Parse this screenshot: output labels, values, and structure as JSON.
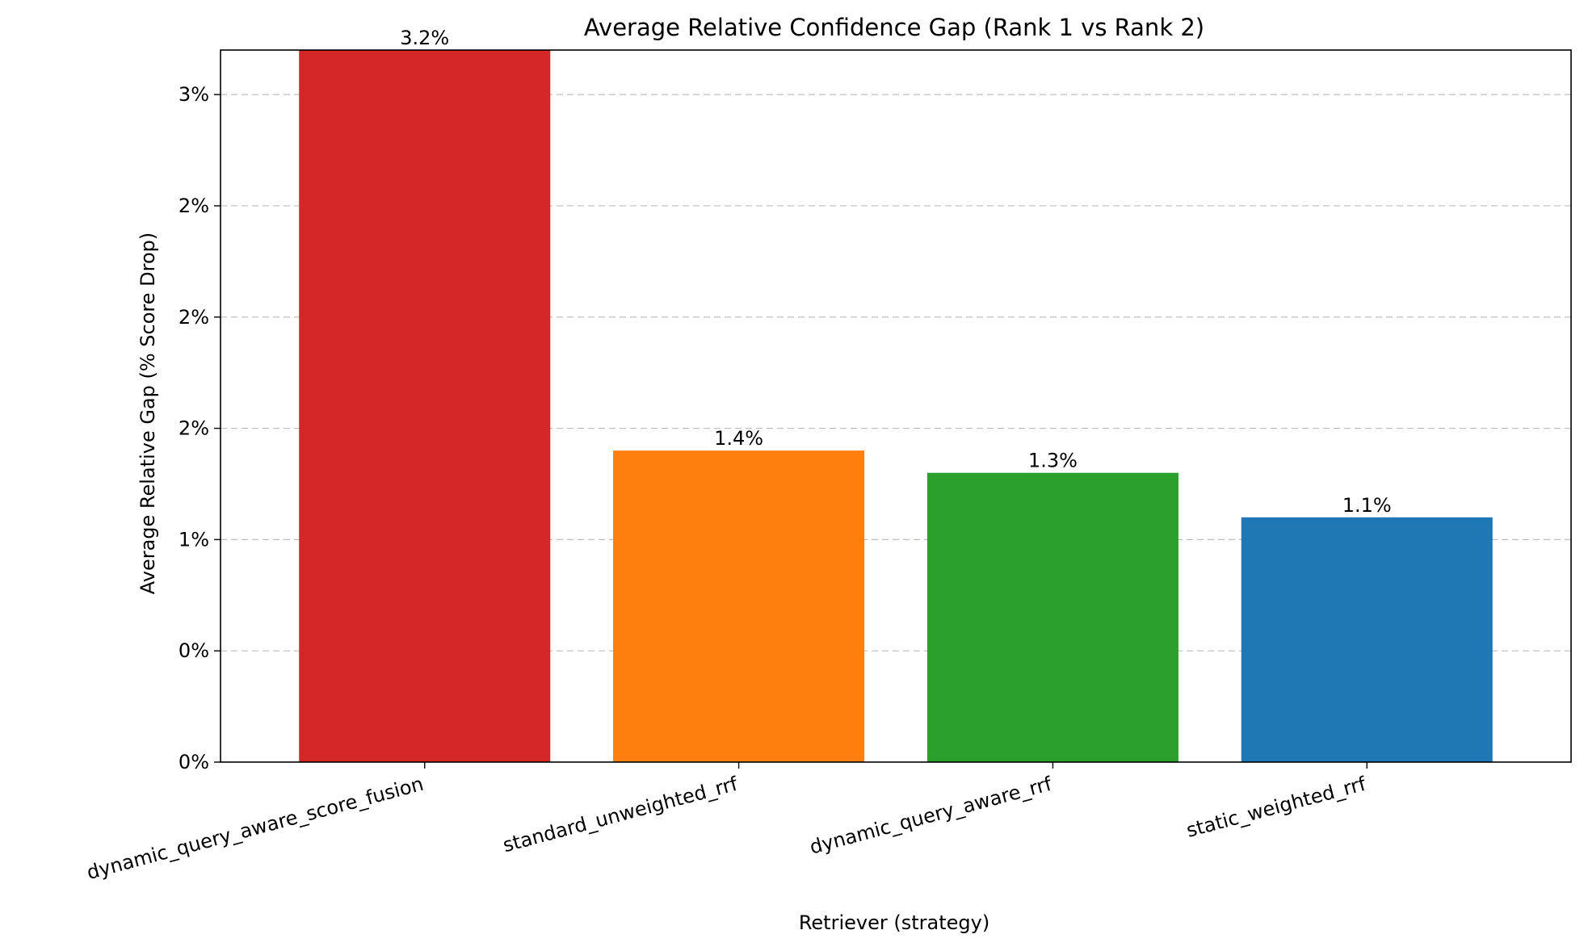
{
  "chart_data": {
    "type": "bar",
    "title": "Average Relative Confidence Gap (Rank 1 vs Rank 2)",
    "xlabel": "Retriever (strategy)",
    "ylabel": "Average Relative Gap (% Score Drop)",
    "categories": [
      "dynamic_query_aware_score_fusion",
      "standard_unweighted_rrf",
      "dynamic_query_aware_rrf",
      "static_weighted_rrf"
    ],
    "values": [
      3.2,
      1.4,
      1.3,
      1.1
    ],
    "bar_labels": [
      "3.2%",
      "1.4%",
      "1.3%",
      "1.1%"
    ],
    "colors": [
      "#d62728",
      "#ff7f0e",
      "#2ca02c",
      "#1f77b4"
    ],
    "yticks": [
      0,
      0.5,
      1.0,
      1.5,
      2.0,
      2.5,
      3.0
    ],
    "ytick_labels": [
      "0%",
      "0%",
      "1%",
      "2%",
      "2%",
      "2%",
      "3%"
    ],
    "ylim": [
      0,
      3.2
    ],
    "grid": "y-dashed",
    "legend": "none"
  }
}
